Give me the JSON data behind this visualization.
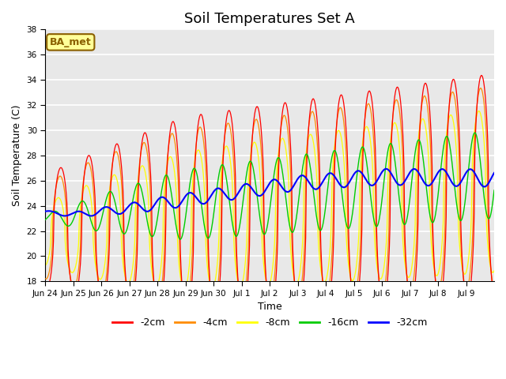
{
  "title": "Soil Temperatures Set A",
  "xlabel": "Time",
  "ylabel": "Soil Temperature (C)",
  "ylim": [
    18,
    38
  ],
  "yticks": [
    18,
    20,
    22,
    24,
    26,
    28,
    30,
    32,
    34,
    36,
    38
  ],
  "x_tick_labels": [
    "Jun 24",
    "Jun 25",
    "Jun 26",
    "Jun 27",
    "Jun 28",
    "Jun 29",
    "Jun 30",
    "Jul 1",
    "Jul 2",
    "Jul 3",
    "Jul 4",
    "Jul 5",
    "Jul 6",
    "Jul 7",
    "Jul 8",
    "Jul 9"
  ],
  "colors": {
    "-2cm": "#FF0000",
    "-4cm": "#FF8C00",
    "-8cm": "#FFFF00",
    "-16cm": "#00CC00",
    "-32cm": "#0000FF"
  },
  "legend_labels": [
    "-2cm",
    "-4cm",
    "-8cm",
    "-16cm",
    "-32cm"
  ],
  "annotation_text": "BA_met",
  "annotation_bg": "#FFFF99",
  "annotation_border": "#8B6000",
  "bg_color": "#E8E8E8",
  "fig_bg": "#FFFFFF",
  "title_fontsize": 13,
  "axis_fontsize": 9,
  "n_days": 16,
  "pts_per_day": 48
}
